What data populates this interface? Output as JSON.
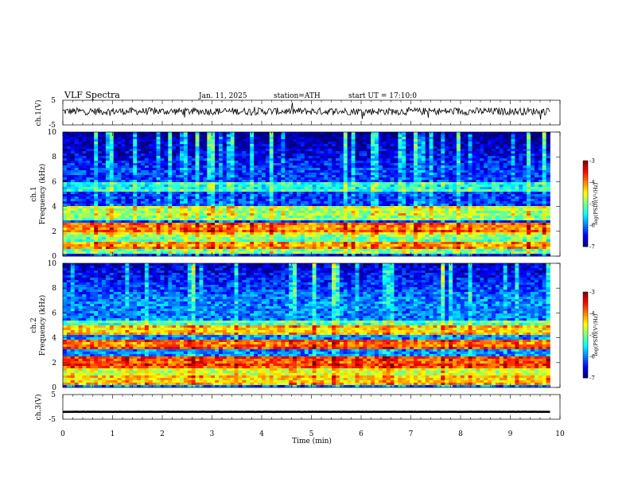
{
  "header": {
    "title": "VLF Spectra",
    "date": "Jan. 11, 2025",
    "station": "station=ATH",
    "start_time": "start UT = 17:10:0"
  },
  "chart_data": [
    {
      "type": "line",
      "name": "ch.1 waveform",
      "ylabel": "ch.1(V)",
      "ylim": [
        -5,
        5
      ],
      "yticks": [
        "5",
        "-5"
      ],
      "xlim": [
        0,
        10
      ],
      "x_range_data": [
        0,
        9.8
      ],
      "approx_level": 0.5,
      "approx_amplitude": 1.5,
      "color": "#000000"
    },
    {
      "type": "heatmap",
      "name": "ch.1 spectrogram",
      "ylabel": "ch.1\nFrequency (kHz)",
      "ylim": [
        0,
        10
      ],
      "yticks": [
        "10",
        "8",
        "6",
        "4",
        "2",
        "0"
      ],
      "xlim": [
        0,
        10
      ],
      "x_range_data": [
        0,
        9.8
      ],
      "colorbar": {
        "range": [
          -7,
          -3
        ],
        "ticks": [
          "-3",
          "-4",
          "-5",
          "-6",
          "-7"
        ],
        "label": "log(PSD)(V²/Hz)"
      },
      "bands_khz": [
        {
          "f": 0.5,
          "level": -5.2
        },
        {
          "f": 0.9,
          "level": -4.3
        },
        {
          "f": 1.3,
          "level": -5.3
        },
        {
          "f": 2.0,
          "level": -4.7
        },
        {
          "f": 2.3,
          "level": -4.2
        },
        {
          "f": 3.3,
          "level": -5.2
        },
        {
          "f": 3.6,
          "level": -5.0
        },
        {
          "f": 5.6,
          "level": -5.6
        }
      ],
      "background_level": -6.3
    },
    {
      "type": "heatmap",
      "name": "ch.2 spectrogram",
      "ylabel": "ch.2\nFrequency (kHz)",
      "ylim": [
        0,
        10
      ],
      "yticks": [
        "10",
        "8",
        "6",
        "4",
        "2",
        "0"
      ],
      "xlim": [
        0,
        10
      ],
      "x_range_data": [
        0,
        9.8
      ],
      "colorbar": {
        "range": [
          -7,
          -3
        ],
        "ticks": [
          "-3",
          "-4",
          "-5",
          "-6",
          "-7"
        ],
        "label": "log(PSD)(V²/Hz)"
      },
      "bands_khz": [
        {
          "f": 0.6,
          "level": -4.5
        },
        {
          "f": 1.2,
          "level": -4.8
        },
        {
          "f": 1.9,
          "level": -4.1
        },
        {
          "f": 2.1,
          "level": -4.0
        },
        {
          "f": 3.5,
          "level": -4.1
        },
        {
          "f": 4.6,
          "level": -4.5
        },
        {
          "f": 5.1,
          "level": -5.3
        }
      ],
      "background_level": -6.0
    },
    {
      "type": "line",
      "name": "ch.3 waveform",
      "ylabel": "ch.3(V)",
      "ylim": [
        -5,
        5
      ],
      "yticks": [
        "5",
        "-5"
      ],
      "xlim": [
        0,
        10
      ],
      "x_range_data": [
        0,
        9.8
      ],
      "approx_level": -2,
      "approx_amplitude": 0.1,
      "color": "#000000",
      "xlabel": "Time (min)",
      "xticks": [
        "0",
        "1",
        "2",
        "3",
        "4",
        "5",
        "6",
        "7",
        "8",
        "9",
        "10"
      ]
    }
  ]
}
